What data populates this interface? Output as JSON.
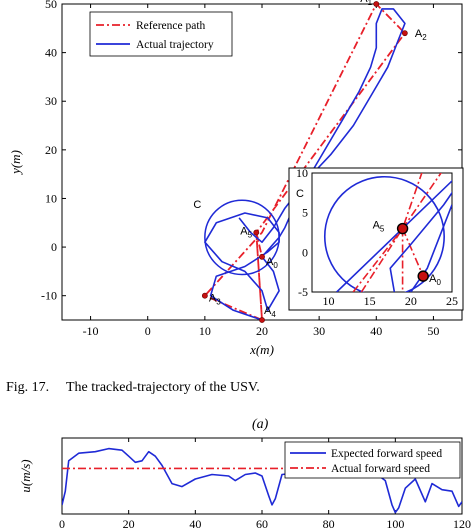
{
  "caption": {
    "figure": "Fig. 17.",
    "text": "The tracked-trajectory of the USV.",
    "subfigure": "(a)"
  },
  "chart_data": [
    {
      "type": "line",
      "xlabel": "x(m)",
      "ylabel": "y(m)",
      "xlim": [
        -15,
        55
      ],
      "ylim": [
        -15,
        50
      ],
      "xticks": [
        -10,
        0,
        10,
        20,
        30,
        40,
        50
      ],
      "yticks": [
        -10,
        0,
        10,
        20,
        30,
        40,
        50
      ],
      "legend": {
        "position": "top-left",
        "entries": [
          "Reference path",
          "Actual trajectory"
        ]
      },
      "series": [
        {
          "name": "Reference path",
          "style": "dash-dot",
          "color": "#e8202a",
          "points": [
            [
              20,
              -15
            ],
            [
              19,
              3
            ],
            [
              20,
              -15
            ],
            [
              10,
              -10
            ],
            [
              20,
              3
            ],
            [
              40,
              50
            ],
            [
              45,
              44
            ],
            [
              19,
              3
            ],
            [
              20,
              -2
            ]
          ]
        },
        {
          "name": "Actual trajectory",
          "style": "solid",
          "color": "#1f2ad6",
          "points": [
            [
              20,
              -15
            ],
            [
              15,
              -13
            ],
            [
              11,
              -10
            ],
            [
              12,
              -6
            ],
            [
              17,
              -4
            ],
            [
              21,
              -1
            ],
            [
              23,
              1
            ],
            [
              23,
              3
            ],
            [
              21,
              6
            ],
            [
              17,
              7
            ],
            [
              12,
              5
            ],
            [
              10,
              1
            ],
            [
              13,
              -3
            ],
            [
              17,
              -5
            ],
            [
              20,
              -9
            ],
            [
              21,
              -13
            ],
            [
              23,
              -9
            ],
            [
              22,
              -5
            ],
            [
              20,
              -2
            ],
            [
              23,
              2
            ],
            [
              24,
              4
            ],
            [
              27,
              12
            ],
            [
              30,
              18
            ],
            [
              34,
              26
            ],
            [
              37,
              32
            ],
            [
              39,
              37
            ],
            [
              40,
              41
            ],
            [
              40,
              46
            ],
            [
              41,
              49
            ],
            [
              43,
              49
            ],
            [
              45,
              46
            ],
            [
              44,
              43
            ],
            [
              42,
              37
            ],
            [
              39,
              31
            ],
            [
              36,
              25
            ],
            [
              32,
              19
            ],
            [
              28,
              14
            ],
            [
              24,
              8
            ],
            [
              22,
              4
            ],
            [
              20,
              1
            ],
            [
              18,
              3
            ],
            [
              16,
              6
            ]
          ]
        }
      ],
      "annotations": [
        "A1",
        "A2",
        "A3",
        "A4",
        "A5",
        "A0",
        "C"
      ],
      "inset": {
        "label": "C",
        "xlim": [
          8,
          25
        ],
        "ylim": [
          -5,
          10
        ],
        "xticks": [
          10,
          15,
          20,
          25
        ],
        "yticks": [
          -5,
          0,
          5,
          10
        ],
        "annotations": [
          "A5",
          "A0"
        ]
      }
    },
    {
      "type": "line",
      "ylabel": "u(m/s)",
      "xlim": [
        0,
        120
      ],
      "ylim": [
        0,
        5
      ],
      "xticks": [
        0,
        20,
        40,
        60,
        80,
        100,
        120
      ],
      "xtick_labels": [
        "0",
        "20",
        "40",
        "60",
        "80",
        "100",
        "120"
      ],
      "legend": {
        "position": "top-right",
        "entries": [
          "Expected forward speed",
          "Actual forward speed"
        ]
      },
      "series": [
        {
          "name": "Expected forward speed",
          "style": "solid",
          "color": "#1f2ad6",
          "points": [
            [
              0,
              0.6
            ],
            [
              1,
              1.5
            ],
            [
              2,
              3.5
            ],
            [
              5,
              4.0
            ],
            [
              10,
              4.1
            ],
            [
              14,
              4.3
            ],
            [
              18,
              4.2
            ],
            [
              20,
              3.8
            ],
            [
              22,
              3.4
            ],
            [
              24,
              3.5
            ],
            [
              26,
              4.1
            ],
            [
              28,
              3.8
            ],
            [
              30,
              3.2
            ],
            [
              33,
              2.0
            ],
            [
              36,
              1.8
            ],
            [
              40,
              2.3
            ],
            [
              45,
              2.6
            ],
            [
              50,
              2.5
            ],
            [
              52,
              2.2
            ],
            [
              55,
              2.6
            ],
            [
              58,
              2.7
            ],
            [
              60,
              2.5
            ],
            [
              62,
              1.2
            ],
            [
              63,
              0.6
            ],
            [
              64,
              1.0
            ],
            [
              66,
              2.6
            ],
            [
              70,
              2.7
            ],
            [
              75,
              2.5
            ],
            [
              80,
              2.6
            ],
            [
              85,
              2.7
            ],
            [
              90,
              2.6
            ],
            [
              94,
              2.7
            ],
            [
              97,
              2.2
            ],
            [
              99,
              0.6
            ],
            [
              100,
              0.1
            ],
            [
              101,
              0.4
            ],
            [
              103,
              1.7
            ],
            [
              106,
              2.3
            ],
            [
              109,
              0.8
            ],
            [
              111,
              2.0
            ],
            [
              114,
              1.6
            ],
            [
              117,
              1.5
            ],
            [
              119,
              0.5
            ],
            [
              120,
              0.8
            ]
          ]
        },
        {
          "name": "Actual forward speed",
          "style": "dash-dot",
          "color": "#e8202a",
          "points": [
            [
              0,
              3
            ],
            [
              120,
              3
            ]
          ]
        }
      ]
    }
  ]
}
